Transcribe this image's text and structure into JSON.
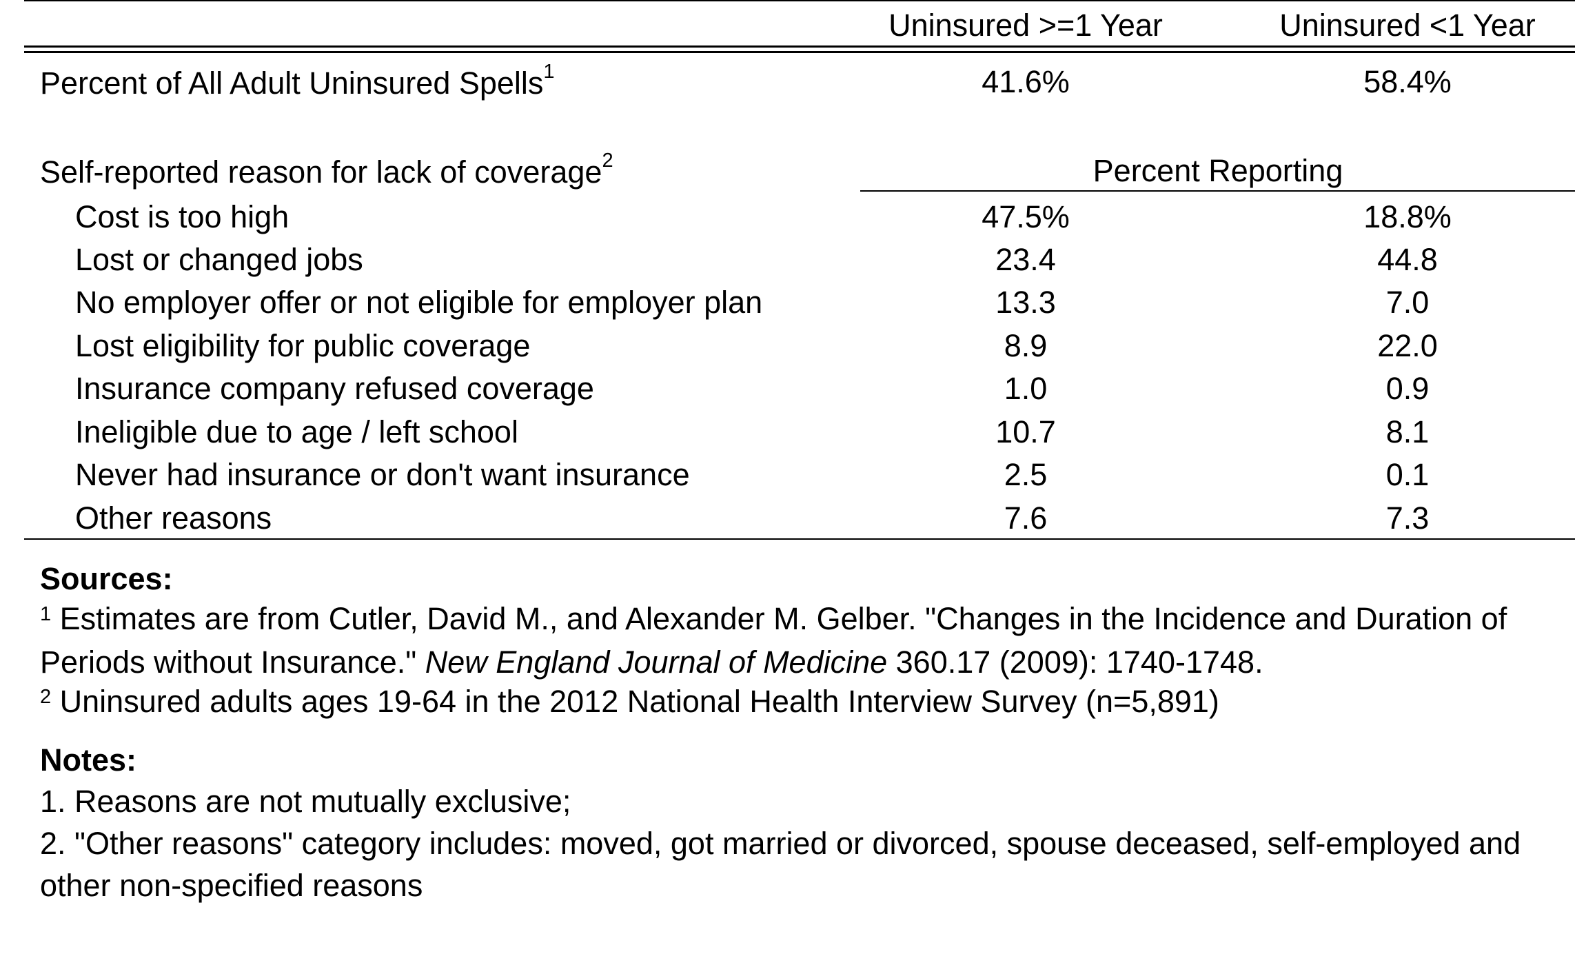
{
  "table": {
    "columns": [
      "Uninsured >=1 Year",
      "Uninsured <1 Year"
    ],
    "spells_row": {
      "label": "Percent of All Adult Uninsured Spells",
      "footnote": "1",
      "values": [
        "41.6%",
        "58.4%"
      ]
    },
    "reasons_header": {
      "label": "Self-reported reason for lack of coverage",
      "footnote": "2",
      "subheader": "Percent Reporting"
    },
    "rows": [
      {
        "label": "Cost is too high",
        "values": [
          "47.5%",
          "18.8%"
        ]
      },
      {
        "label": "Lost or changed jobs",
        "values": [
          "23.4",
          "44.8"
        ]
      },
      {
        "label": "No employer offer or not eligible for employer plan",
        "values": [
          "13.3",
          "7.0"
        ]
      },
      {
        "label": "Lost eligibility for public coverage",
        "values": [
          "8.9",
          "22.0"
        ]
      },
      {
        "label": "Insurance company refused coverage",
        "values": [
          "1.0",
          "0.9"
        ]
      },
      {
        "label": "Ineligible due to age / left school",
        "values": [
          "10.7",
          "8.1"
        ]
      },
      {
        "label": "Never had insurance or don't want insurance",
        "values": [
          "2.5",
          "0.1"
        ]
      },
      {
        "label": "Other reasons",
        "values": [
          "7.6",
          "7.3"
        ]
      }
    ]
  },
  "sources": {
    "heading": "Sources:",
    "items": [
      {
        "marker": "1",
        "text_before": " Estimates are from Cutler, David M., and Alexander M. Gelber. \"Changes in the Incidence and Duration of",
        "text_line2_before": "Periods without Insurance.\" ",
        "journal": "New England Journal of Medicine",
        "text_after": " 360.17 (2009): 1740-1748."
      },
      {
        "marker": "2",
        "text": " Uninsured adults ages 19-64 in the 2012 National Health Interview Survey (n=5,891)"
      }
    ]
  },
  "notes": {
    "heading": "Notes:",
    "items": [
      "1. Reasons are not mutually exclusive;",
      "2. \"Other reasons\" category includes: moved, got married or divorced, spouse deceased, self-employed and",
      "other non-specified reasons"
    ]
  }
}
